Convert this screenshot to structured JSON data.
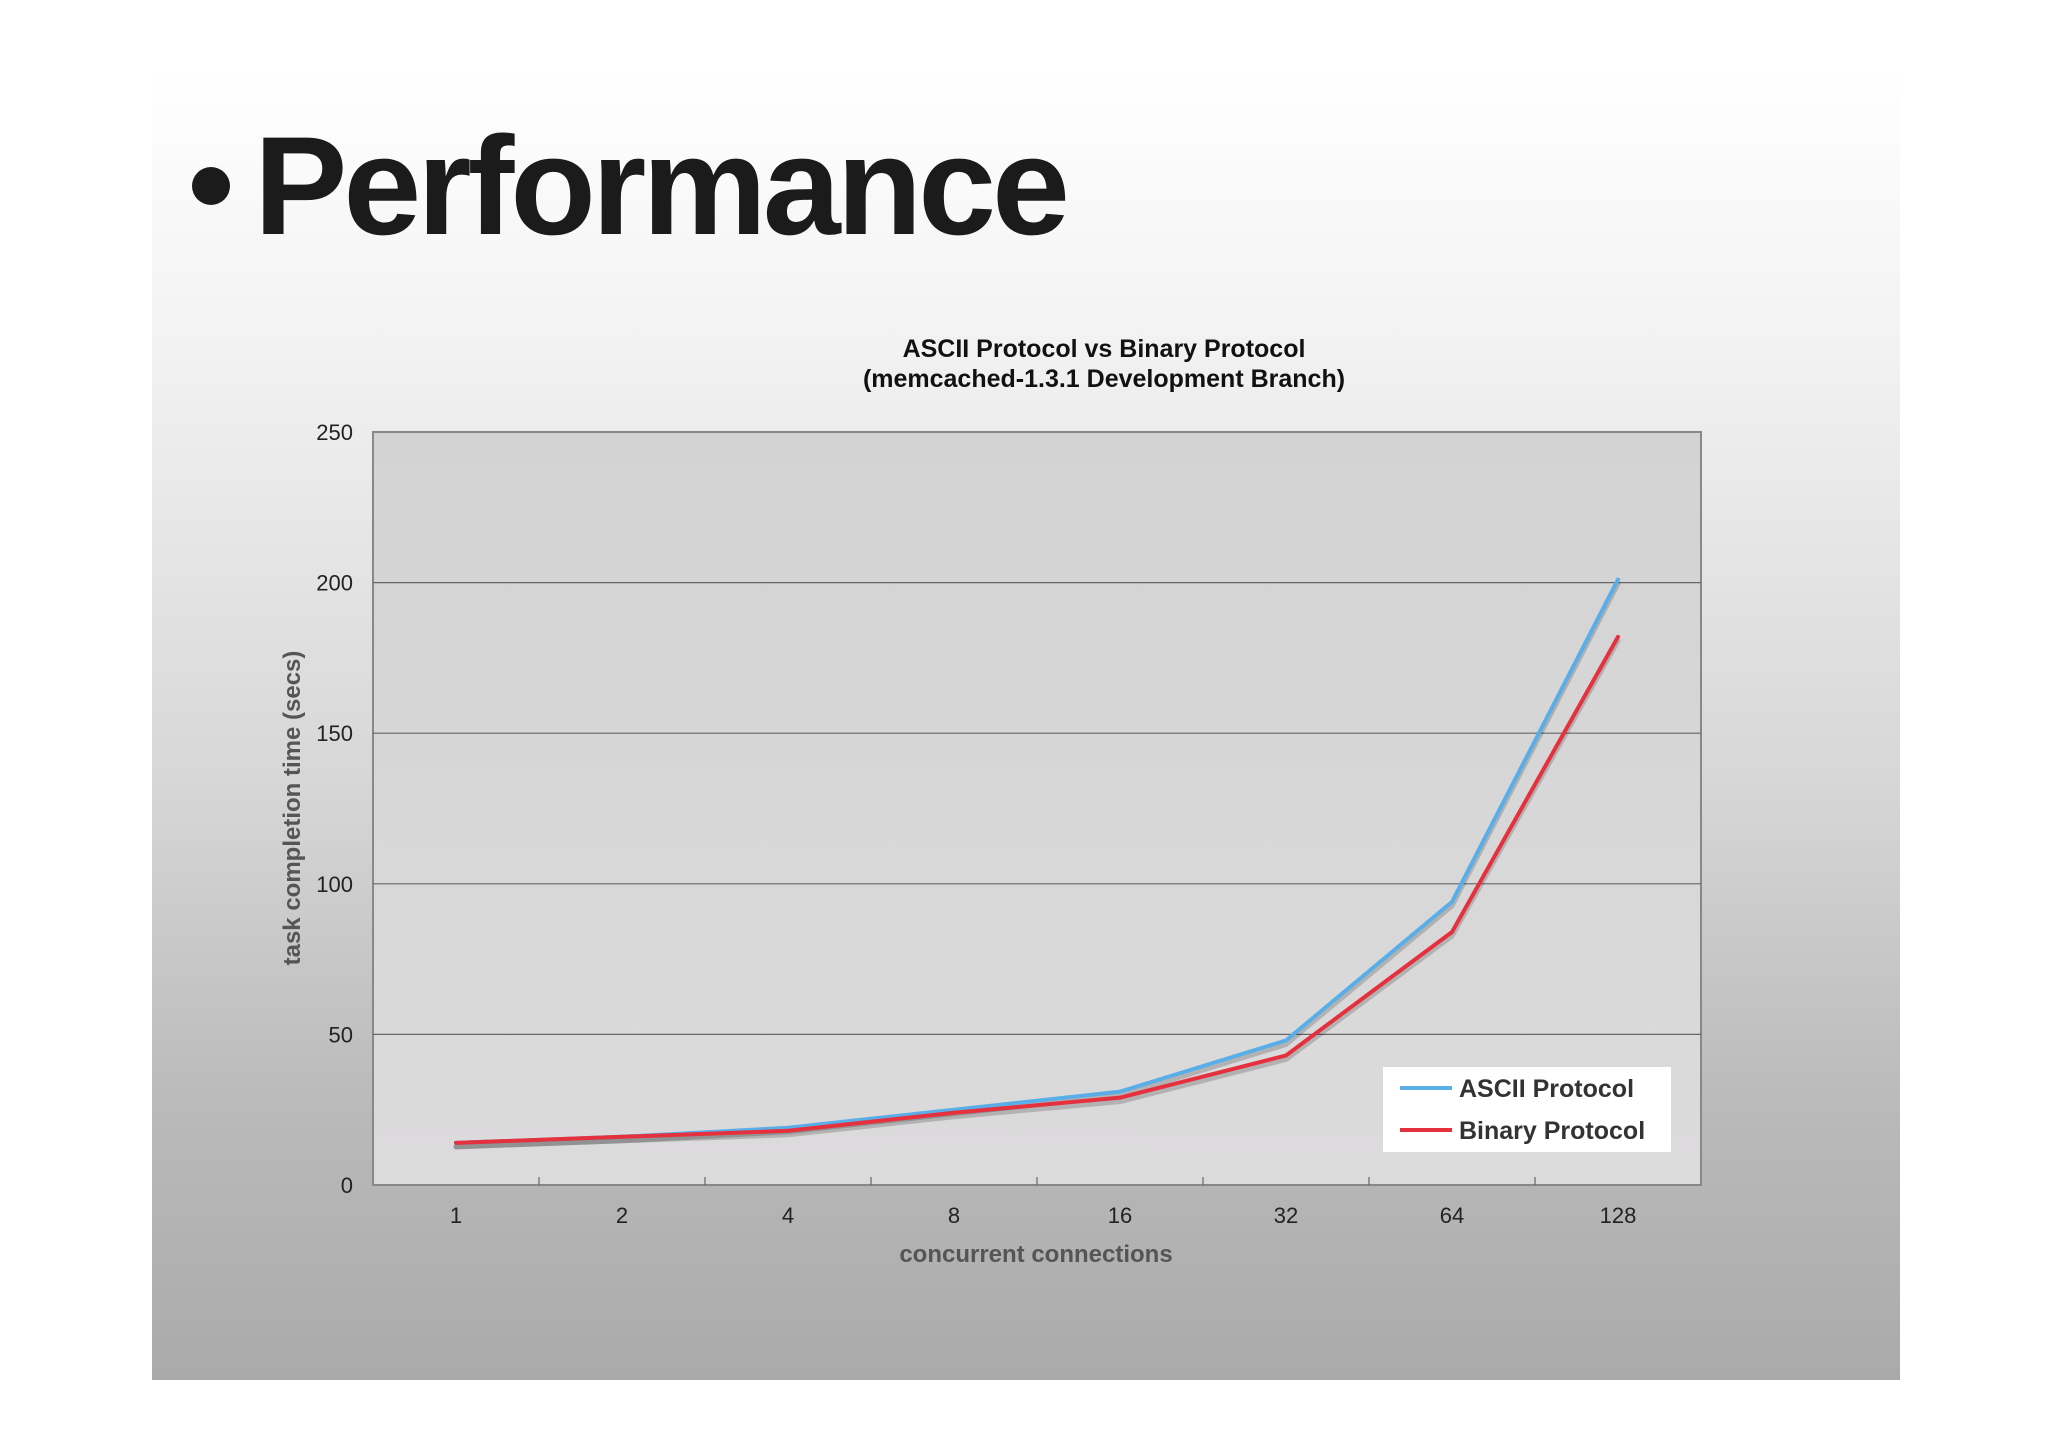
{
  "slide": {
    "title": "Performance"
  },
  "chart_data": {
    "type": "line",
    "title": "ASCII Protocol vs Binary Protocol",
    "subtitle": "(memcached-1.3.1 Development Branch)",
    "xlabel": "concurrent connections",
    "ylabel": "task completion time (secs)",
    "categories": [
      "1",
      "2",
      "4",
      "8",
      "16",
      "32",
      "64",
      "128"
    ],
    "ylim": [
      0,
      250
    ],
    "yticks": [
      "0",
      "50",
      "100",
      "150",
      "200",
      "250"
    ],
    "grid": true,
    "legend_position": "bottom-right",
    "series": [
      {
        "name": "ASCII Protocol",
        "color": "#5aaee8",
        "values": [
          14,
          16,
          19,
          25,
          31,
          48,
          94,
          201
        ]
      },
      {
        "name": "Binary Protocol",
        "color": "#e5313d",
        "values": [
          14,
          16,
          18,
          24,
          29,
          43,
          84,
          182
        ]
      }
    ]
  }
}
